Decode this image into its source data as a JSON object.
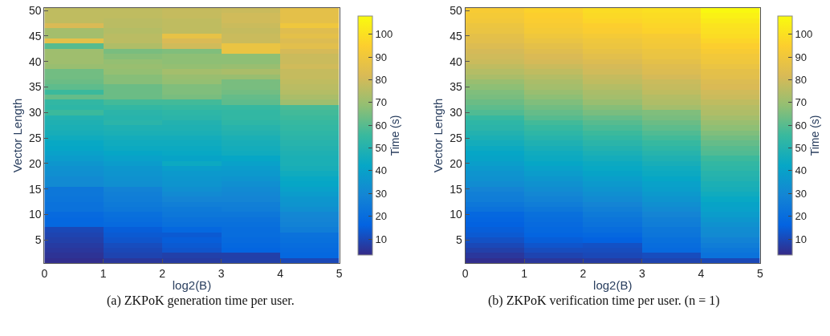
{
  "chart_data": [
    {
      "type": "heatmap",
      "xlabel": "log2(B)",
      "ylabel": "Vector Length",
      "clabel": "Time (s)",
      "annotations": [
        "(a) ZKPoK generation time per user."
      ],
      "x": [
        0.5,
        1.5,
        2.5,
        3.5,
        4.5
      ],
      "xlim": [
        0,
        5
      ],
      "xticks": [
        0,
        1,
        2,
        3,
        4,
        5
      ],
      "ylim": [
        0.5,
        50.5
      ],
      "yticks": [
        5,
        10,
        15,
        20,
        25,
        30,
        35,
        40,
        45,
        50
      ],
      "clim": [
        3,
        108
      ],
      "cticks": [
        10,
        20,
        30,
        40,
        50,
        60,
        70,
        80,
        90,
        100
      ],
      "cells": [
        [
          77,
          77,
          78,
          79,
          86
        ],
        [
          77,
          77,
          78,
          80,
          86
        ],
        [
          77,
          76,
          77,
          80,
          86
        ],
        [
          82,
          76,
          77,
          79,
          90
        ],
        [
          72,
          75,
          77,
          78,
          84
        ],
        [
          72,
          76,
          87,
          79,
          86
        ],
        [
          86,
          76,
          82,
          79,
          83
        ],
        [
          60,
          74,
          80,
          88,
          85
        ],
        [
          71,
          65,
          66,
          88,
          81
        ],
        [
          71,
          67,
          68,
          68,
          79
        ],
        [
          71,
          69,
          68,
          68,
          79
        ],
        [
          70,
          70,
          69,
          70,
          80
        ],
        [
          64,
          69,
          72,
          73,
          78
        ],
        [
          64,
          67,
          70,
          70,
          78
        ],
        [
          63,
          67,
          69,
          65,
          77
        ],
        [
          61,
          63,
          66,
          65,
          76
        ],
        [
          56,
          63,
          66,
          64,
          75
        ],
        [
          62,
          63,
          65,
          62,
          73
        ],
        [
          54,
          57,
          57,
          61,
          71
        ],
        [
          53,
          54,
          55,
          55,
          58
        ],
        [
          56,
          52,
          53,
          54,
          57
        ],
        [
          50,
          51,
          52,
          54,
          56
        ],
        [
          49,
          52,
          50,
          53,
          55
        ],
        [
          48,
          49,
          49,
          51,
          54
        ],
        [
          47,
          48,
          48,
          50,
          53
        ],
        [
          45,
          46,
          46,
          48,
          52
        ],
        [
          43,
          45,
          45,
          47,
          51
        ],
        [
          42,
          44,
          44,
          46,
          50
        ],
        [
          40,
          42,
          43,
          45,
          49
        ],
        [
          38,
          40,
          41,
          42,
          48
        ],
        [
          36,
          38,
          44,
          40,
          48
        ],
        [
          34,
          36,
          39,
          38,
          47
        ],
        [
          33,
          35,
          37,
          37,
          45
        ],
        [
          31,
          34,
          36,
          35,
          43
        ],
        [
          31,
          33,
          35,
          33,
          42
        ],
        [
          24,
          28,
          33,
          31,
          40
        ],
        [
          24,
          27,
          31,
          30,
          38
        ],
        [
          23,
          26,
          29,
          29,
          36
        ],
        [
          22,
          25,
          27,
          27,
          35
        ],
        [
          22,
          24,
          25,
          26,
          33
        ],
        [
          19,
          21,
          24,
          24,
          30
        ],
        [
          18,
          20,
          22,
          22,
          29
        ],
        [
          18,
          19,
          21,
          21,
          28
        ],
        [
          10,
          15,
          18,
          20,
          26
        ],
        [
          9,
          14,
          14,
          20,
          22
        ],
        [
          8,
          13,
          15,
          19,
          21
        ],
        [
          7,
          11,
          14,
          18,
          20
        ],
        [
          6,
          10,
          13,
          17,
          19
        ],
        [
          5,
          9,
          8,
          8,
          18
        ],
        [
          4,
          6,
          7,
          8,
          10
        ]
      ]
    },
    {
      "type": "heatmap",
      "xlabel": "log2(B)",
      "ylabel": "Vector Length",
      "clabel": "Time (s)",
      "annotations": [
        "(b) ZKPoK verification time per user. (n = 1)"
      ],
      "x": [
        0.5,
        1.5,
        2.5,
        3.5,
        4.5
      ],
      "xlim": [
        0,
        5
      ],
      "xticks": [
        0,
        1,
        2,
        3,
        4,
        5
      ],
      "ylim": [
        0.5,
        50.5
      ],
      "yticks": [
        5,
        10,
        15,
        20,
        25,
        30,
        35,
        40,
        45,
        50
      ],
      "clim": [
        3,
        108
      ],
      "cticks": [
        10,
        20,
        30,
        40,
        50,
        60,
        70,
        80,
        90,
        100
      ],
      "cells": [
        [
          93,
          96,
          99,
          100,
          107
        ],
        [
          92,
          95,
          98,
          99,
          105
        ],
        [
          91,
          94,
          97,
          98,
          103
        ],
        [
          89,
          93,
          95,
          97,
          101
        ],
        [
          88,
          92,
          94,
          96,
          100
        ],
        [
          86,
          90,
          92,
          93,
          99
        ],
        [
          85,
          88,
          90,
          92,
          97
        ],
        [
          83,
          86,
          89,
          91,
          95
        ],
        [
          81,
          84,
          87,
          89,
          93
        ],
        [
          80,
          82,
          85,
          88,
          91
        ],
        [
          79,
          81,
          83,
          86,
          90
        ],
        [
          77,
          79,
          81,
          84,
          88
        ],
        [
          75,
          77,
          80,
          83,
          86
        ],
        [
          73,
          75,
          78,
          81,
          85
        ],
        [
          70,
          73,
          77,
          79,
          83
        ],
        [
          68,
          72,
          75,
          78,
          82
        ],
        [
          66,
          70,
          73,
          77,
          80
        ],
        [
          65,
          68,
          72,
          75,
          79
        ],
        [
          63,
          66,
          70,
          74,
          77
        ],
        [
          61,
          64,
          67,
          72,
          75
        ],
        [
          59,
          62,
          65,
          66,
          74
        ],
        [
          55,
          60,
          62,
          65,
          72
        ],
        [
          53,
          57,
          60,
          63,
          70
        ],
        [
          52,
          55,
          58,
          61,
          68
        ],
        [
          50,
          53,
          56,
          59,
          66
        ],
        [
          48,
          51,
          54,
          57,
          64
        ],
        [
          46,
          49,
          52,
          55,
          62
        ],
        [
          44,
          47,
          50,
          53,
          60
        ],
        [
          42,
          45,
          48,
          51,
          59
        ],
        [
          41,
          44,
          46,
          49,
          56
        ],
        [
          39,
          42,
          44,
          47,
          54
        ],
        [
          37,
          40,
          43,
          45,
          53
        ],
        [
          35,
          38,
          41,
          44,
          51
        ],
        [
          34,
          36,
          39,
          42,
          50
        ],
        [
          32,
          34,
          37,
          40,
          48
        ],
        [
          29,
          32,
          35,
          39,
          47
        ],
        [
          27,
          30,
          33,
          37,
          45
        ],
        [
          26,
          28,
          31,
          35,
          43
        ],
        [
          24,
          26,
          29,
          33,
          41
        ],
        [
          22,
          24,
          27,
          31,
          40
        ],
        [
          18,
          21,
          25,
          29,
          38
        ],
        [
          17,
          20,
          23,
          27,
          36
        ],
        [
          16,
          19,
          22,
          26,
          34
        ],
        [
          15,
          18,
          20,
          24,
          32
        ],
        [
          14,
          17,
          18,
          23,
          31
        ],
        [
          12,
          15,
          16,
          21,
          28
        ],
        [
          10,
          13,
          12,
          20,
          26
        ],
        [
          8,
          11,
          11,
          19,
          24
        ],
        [
          6,
          9,
          10,
          11,
          22
        ],
        [
          4,
          6,
          7,
          9,
          10
        ]
      ]
    }
  ]
}
